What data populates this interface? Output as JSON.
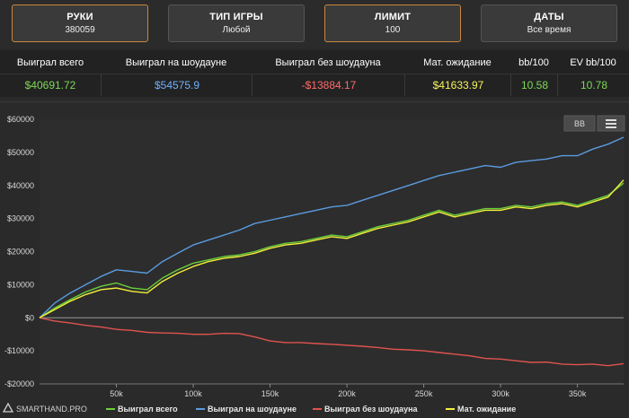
{
  "filters": [
    {
      "title": "РУКИ",
      "value": "380059",
      "active": true
    },
    {
      "title": "ТИП ИГРЫ",
      "value": "Любой",
      "active": false
    },
    {
      "title": "ЛИМИТ",
      "value": "100",
      "active": true
    },
    {
      "title": "ДАТЫ",
      "value": "Все время",
      "active": false
    }
  ],
  "stats": {
    "headers": [
      "Выиграл всего",
      "Выиграл на шоудауне",
      "Выиграл без шоудауна",
      "Мат. ожидание",
      "bb/100",
      "EV bb/100"
    ],
    "values": [
      "$40691.72",
      "$54575.9",
      "-$13884.17",
      "$41633.97",
      "10.58",
      "10.78"
    ],
    "colors": [
      "#7ed957",
      "#6fb1ff",
      "#ff6b6b",
      "#f7f35a",
      "#7ed957",
      "#7ed957"
    ]
  },
  "chart_toolbar": {
    "bb_label": "BB",
    "menu_icon": "hamburger-menu-icon"
  },
  "brand": {
    "label": "SMARTHAND.PRO",
    "icon": "smarthand-logo-icon"
  },
  "chart_data": {
    "type": "line",
    "xlabel": "",
    "ylabel": "",
    "xlim": [
      0,
      380059
    ],
    "ylim": [
      -20000,
      60000
    ],
    "x_ticks": [
      50000,
      100000,
      150000,
      200000,
      250000,
      300000,
      350000
    ],
    "x_tick_labels": [
      "50k",
      "100k",
      "150k",
      "200k",
      "250k",
      "300k",
      "350k"
    ],
    "y_ticks": [
      -20000,
      -10000,
      0,
      10000,
      20000,
      30000,
      40000,
      50000,
      60000
    ],
    "y_tick_labels": [
      "-$20000",
      "-$10000",
      "$0",
      "$10000",
      "$20000",
      "$30000",
      "$40000",
      "$50000",
      "$60000"
    ],
    "legend_position": "bottom",
    "grid": false,
    "x": [
      0,
      10000,
      20000,
      30000,
      40000,
      50000,
      60000,
      70000,
      80000,
      90000,
      100000,
      110000,
      120000,
      130000,
      140000,
      150000,
      160000,
      170000,
      180000,
      190000,
      200000,
      210000,
      220000,
      230000,
      240000,
      250000,
      260000,
      270000,
      280000,
      290000,
      300000,
      310000,
      320000,
      330000,
      340000,
      350000,
      360000,
      370000,
      380059
    ],
    "series": [
      {
        "name": "Выиграл всего",
        "color": "#6ccf3a",
        "values": [
          0,
          3000,
          5500,
          7800,
          9500,
          10500,
          9000,
          8500,
          12000,
          14500,
          16500,
          17500,
          18500,
          19000,
          20000,
          21500,
          22500,
          23000,
          24000,
          25000,
          24500,
          26000,
          27500,
          28500,
          29500,
          31000,
          32500,
          31000,
          32000,
          33000,
          33000,
          34000,
          33500,
          34500,
          35000,
          34000,
          35500,
          37000,
          40692
        ]
      },
      {
        "name": "Выиграл на шоудауне",
        "color": "#5a9be0",
        "values": [
          0,
          4500,
          7500,
          10000,
          12500,
          14500,
          14000,
          13500,
          17000,
          19500,
          22000,
          23500,
          25000,
          26500,
          28500,
          29500,
          30500,
          31500,
          32500,
          33500,
          34000,
          35500,
          37000,
          38500,
          40000,
          41500,
          43000,
          44000,
          45000,
          46000,
          45500,
          47000,
          47500,
          48000,
          49000,
          49000,
          51000,
          52500,
          54576
        ]
      },
      {
        "name": "Выиграл без шоудауна",
        "color": "#e0534f",
        "values": [
          0,
          -1000,
          -1600,
          -2300,
          -2800,
          -3500,
          -3800,
          -4400,
          -4600,
          -4700,
          -5000,
          -5000,
          -4700,
          -4800,
          -5800,
          -7000,
          -7500,
          -7500,
          -7800,
          -8000,
          -8300,
          -8600,
          -9000,
          -9500,
          -9700,
          -10000,
          -10500,
          -11000,
          -11500,
          -12300,
          -12500,
          -13000,
          -13500,
          -13400,
          -14000,
          -14200,
          -14000,
          -14500,
          -13884
        ]
      },
      {
        "name": "Мат. ожидание",
        "color": "#f2ef3c",
        "values": [
          0,
          2500,
          5000,
          7000,
          8500,
          9000,
          8000,
          7500,
          11000,
          13500,
          15500,
          17000,
          18000,
          18500,
          19500,
          21000,
          22000,
          22500,
          23500,
          24500,
          24000,
          25500,
          27000,
          28000,
          29000,
          30500,
          32000,
          30500,
          31500,
          32500,
          32500,
          33500,
          33000,
          34000,
          34500,
          33500,
          35000,
          36500,
          41634
        ]
      }
    ]
  }
}
